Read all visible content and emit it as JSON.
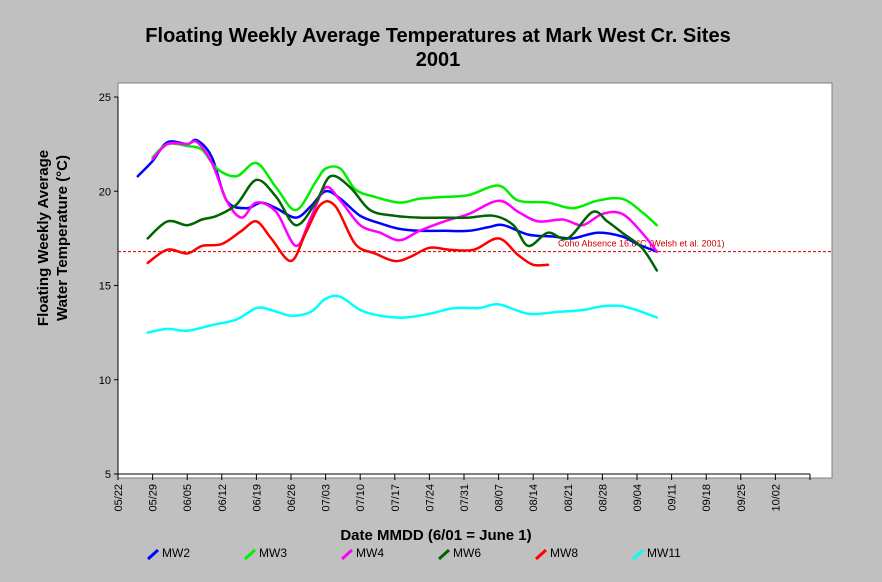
{
  "chart_data": {
    "type": "line",
    "title": "Floating Weekly Average Temperatures at Mark West Cr. Sites",
    "subtitle": "2001",
    "xlabel": "Date MMDD (6/01 = June 1)",
    "ylabel_line1": "Floating Weekly Average",
    "ylabel_line2": "Water Temperature (°C)",
    "ylim": [
      5,
      25
    ],
    "yticks": [
      "5",
      "10",
      "15",
      "20",
      "25"
    ],
    "xlim": [
      "2001-05-22",
      "2001-10-09"
    ],
    "xticks": [
      "05/22",
      "05/29",
      "06/05",
      "06/12",
      "06/19",
      "06/26",
      "07/03",
      "07/10",
      "07/17",
      "07/24",
      "07/31",
      "08/07",
      "08/14",
      "08/21",
      "08/28",
      "09/04",
      "09/11",
      "09/18",
      "09/25",
      "10/02"
    ],
    "grid": false,
    "legend_position": "bottom",
    "reference_line": {
      "value": 16.8,
      "label": "Coho Absence 16.8°C (Welsh et al. 2001)",
      "color": "#cc0000"
    },
    "series": [
      {
        "name": "MW2",
        "color": "#0000ff",
        "x": [
          "2001-05-26",
          "2001-05-29",
          "2001-06-01",
          "2001-06-05",
          "2001-06-07",
          "2001-06-10",
          "2001-06-13",
          "2001-06-17",
          "2001-06-20",
          "2001-06-23",
          "2001-06-27",
          "2001-06-30",
          "2001-07-03",
          "2001-07-06",
          "2001-07-10",
          "2001-07-14",
          "2001-07-18",
          "2001-07-22",
          "2001-07-27",
          "2001-08-01",
          "2001-08-05",
          "2001-08-08",
          "2001-08-13",
          "2001-08-18",
          "2001-08-22",
          "2001-08-27",
          "2001-09-01",
          "2001-09-04",
          "2001-09-08"
        ],
        "y": [
          20.8,
          21.6,
          22.6,
          22.5,
          22.7,
          21.8,
          19.5,
          19.1,
          19.4,
          19.1,
          18.6,
          19.2,
          20.0,
          19.6,
          18.7,
          18.3,
          18.0,
          17.9,
          17.9,
          17.9,
          18.1,
          18.2,
          17.7,
          17.6,
          17.5,
          17.8,
          17.6,
          17.2,
          16.8
        ]
      },
      {
        "name": "MW3",
        "color": "#00ee00",
        "x": [
          "2001-05-29",
          "2001-06-01",
          "2001-06-05",
          "2001-06-08",
          "2001-06-11",
          "2001-06-15",
          "2001-06-19",
          "2001-06-23",
          "2001-06-27",
          "2001-07-01",
          "2001-07-03",
          "2001-07-06",
          "2001-07-09",
          "2001-07-13",
          "2001-07-18",
          "2001-07-22",
          "2001-07-27",
          "2001-08-01",
          "2001-08-07",
          "2001-08-11",
          "2001-08-17",
          "2001-08-22",
          "2001-08-27",
          "2001-09-01",
          "2001-09-05",
          "2001-09-08"
        ],
        "y": [
          21.8,
          22.5,
          22.4,
          22.2,
          21.2,
          20.8,
          21.5,
          20.2,
          19.0,
          20.5,
          21.2,
          21.2,
          20.1,
          19.7,
          19.4,
          19.6,
          19.7,
          19.8,
          20.3,
          19.5,
          19.4,
          19.1,
          19.5,
          19.6,
          18.9,
          18.2
        ]
      },
      {
        "name": "MW4",
        "color": "#ff00ff",
        "x": [
          "2001-05-29",
          "2001-06-01",
          "2001-06-05",
          "2001-06-07",
          "2001-06-10",
          "2001-06-13",
          "2001-06-16",
          "2001-06-19",
          "2001-06-23",
          "2001-06-27",
          "2001-06-30",
          "2001-07-03",
          "2001-07-06",
          "2001-07-10",
          "2001-07-14",
          "2001-07-18",
          "2001-07-22",
          "2001-07-27",
          "2001-08-01",
          "2001-08-07",
          "2001-08-11",
          "2001-08-15",
          "2001-08-20",
          "2001-08-24",
          "2001-08-28",
          "2001-09-01",
          "2001-09-05",
          "2001-09-08"
        ],
        "y": [
          21.7,
          22.5,
          22.5,
          22.6,
          21.5,
          19.5,
          18.6,
          19.4,
          18.9,
          17.1,
          18.6,
          20.2,
          19.5,
          18.2,
          17.8,
          17.4,
          17.9,
          18.4,
          18.8,
          19.5,
          18.9,
          18.4,
          18.5,
          18.2,
          18.8,
          18.8,
          17.8,
          16.8
        ]
      },
      {
        "name": "MW6",
        "color": "#006400",
        "x": [
          "2001-05-28",
          "2001-06-01",
          "2001-06-05",
          "2001-06-08",
          "2001-06-11",
          "2001-06-15",
          "2001-06-19",
          "2001-06-23",
          "2001-06-27",
          "2001-07-01",
          "2001-07-04",
          "2001-07-08",
          "2001-07-12",
          "2001-07-17",
          "2001-07-22",
          "2001-07-27",
          "2001-08-01",
          "2001-08-06",
          "2001-08-10",
          "2001-08-13",
          "2001-08-17",
          "2001-08-21",
          "2001-08-26",
          "2001-08-29",
          "2001-09-01",
          "2001-09-05",
          "2001-09-08"
        ],
        "y": [
          17.5,
          18.4,
          18.2,
          18.5,
          18.7,
          19.3,
          20.6,
          19.7,
          18.2,
          19.4,
          20.8,
          20.2,
          19.0,
          18.7,
          18.6,
          18.6,
          18.6,
          18.7,
          18.2,
          17.1,
          17.8,
          17.5,
          18.9,
          18.4,
          17.8,
          17.0,
          15.8
        ]
      },
      {
        "name": "MW8",
        "color": "#ff0000",
        "x": [
          "2001-05-28",
          "2001-06-01",
          "2001-06-05",
          "2001-06-08",
          "2001-06-12",
          "2001-06-16",
          "2001-06-19",
          "2001-06-22",
          "2001-06-26",
          "2001-06-29",
          "2001-07-02",
          "2001-07-05",
          "2001-07-09",
          "2001-07-13",
          "2001-07-17",
          "2001-07-20",
          "2001-07-24",
          "2001-07-28",
          "2001-08-02",
          "2001-08-07",
          "2001-08-11",
          "2001-08-14",
          "2001-08-17"
        ],
        "y": [
          16.2,
          16.9,
          16.7,
          17.1,
          17.2,
          17.9,
          18.4,
          17.5,
          16.3,
          17.8,
          19.3,
          19.2,
          17.2,
          16.7,
          16.3,
          16.5,
          17.0,
          16.9,
          16.9,
          17.5,
          16.6,
          16.1,
          16.1
        ]
      },
      {
        "name": "MW11",
        "color": "#00ffff",
        "x": [
          "2001-05-28",
          "2001-06-01",
          "2001-06-05",
          "2001-06-10",
          "2001-06-15",
          "2001-06-19",
          "2001-06-22",
          "2001-06-26",
          "2001-06-30",
          "2001-07-03",
          "2001-07-06",
          "2001-07-10",
          "2001-07-14",
          "2001-07-19",
          "2001-07-24",
          "2001-07-29",
          "2001-08-03",
          "2001-08-07",
          "2001-08-13",
          "2001-08-19",
          "2001-08-24",
          "2001-08-28",
          "2001-09-01",
          "2001-09-05",
          "2001-09-08"
        ],
        "y": [
          12.5,
          12.7,
          12.6,
          12.9,
          13.2,
          13.8,
          13.7,
          13.4,
          13.6,
          14.3,
          14.4,
          13.7,
          13.4,
          13.3,
          13.5,
          13.8,
          13.8,
          14.0,
          13.5,
          13.6,
          13.7,
          13.9,
          13.9,
          13.6,
          13.3
        ]
      }
    ]
  }
}
